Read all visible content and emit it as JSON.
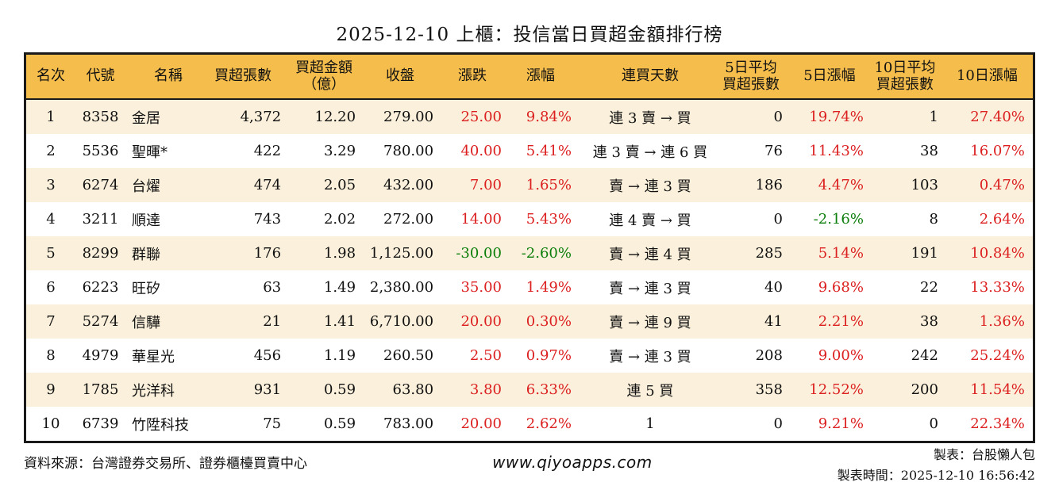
{
  "title": "2025-12-10 上櫃：投信當日買超金額排行榜",
  "colors": {
    "header_bg": "#f5bd4b",
    "row_alt_bg": "#faf0db",
    "positive_red": "#dc2020",
    "negative_green": "#0b7e0b",
    "border": "#1a1a1a"
  },
  "table": {
    "headers": [
      {
        "l1": "名次",
        "l2": ""
      },
      {
        "l1": "代號",
        "l2": ""
      },
      {
        "l1": "名稱",
        "l2": ""
      },
      {
        "l1": "買超張數",
        "l2": ""
      },
      {
        "l1": "買超金額",
        "l2": "（億）"
      },
      {
        "l1": "收盤",
        "l2": ""
      },
      {
        "l1": "漲跌",
        "l2": ""
      },
      {
        "l1": "漲幅",
        "l2": ""
      },
      {
        "l1": "連買天數",
        "l2": ""
      },
      {
        "l1": "5日平均",
        "l2": "買超張數"
      },
      {
        "l1": "5日漲幅",
        "l2": ""
      },
      {
        "l1": "10日平均",
        "l2": "買超張數"
      },
      {
        "l1": "10日漲幅",
        "l2": ""
      }
    ],
    "rows": [
      {
        "rank": "1",
        "code": "8358",
        "name": "金居",
        "volume": "4,372",
        "amount": "12.20",
        "close": "279.00",
        "change": "25.00",
        "change_pct": "9.84%",
        "streak": "連 3 賣 → 買",
        "avg5": "0",
        "pct5": "19.74%",
        "avg10": "1",
        "pct10": "27.40%"
      },
      {
        "rank": "2",
        "code": "5536",
        "name": "聖暉*",
        "volume": "422",
        "amount": "3.29",
        "close": "780.00",
        "change": "40.00",
        "change_pct": "5.41%",
        "streak": "連 3 賣 → 連 6 買",
        "avg5": "76",
        "pct5": "11.43%",
        "avg10": "38",
        "pct10": "16.07%"
      },
      {
        "rank": "3",
        "code": "6274",
        "name": "台燿",
        "volume": "474",
        "amount": "2.05",
        "close": "432.00",
        "change": "7.00",
        "change_pct": "1.65%",
        "streak": "賣 → 連 3 買",
        "avg5": "186",
        "pct5": "4.47%",
        "avg10": "103",
        "pct10": "0.47%"
      },
      {
        "rank": "4",
        "code": "3211",
        "name": "順達",
        "volume": "743",
        "amount": "2.02",
        "close": "272.00",
        "change": "14.00",
        "change_pct": "5.43%",
        "streak": "連 4 賣 → 買",
        "avg5": "0",
        "pct5": "-2.16%",
        "avg10": "8",
        "pct10": "2.64%"
      },
      {
        "rank": "5",
        "code": "8299",
        "name": "群聯",
        "volume": "176",
        "amount": "1.98",
        "close": "1,125.00",
        "change": "-30.00",
        "change_pct": "-2.60%",
        "streak": "賣 → 連 4 買",
        "avg5": "285",
        "pct5": "5.14%",
        "avg10": "191",
        "pct10": "10.84%"
      },
      {
        "rank": "6",
        "code": "6223",
        "name": "旺矽",
        "volume": "63",
        "amount": "1.49",
        "close": "2,380.00",
        "change": "35.00",
        "change_pct": "1.49%",
        "streak": "賣 → 連 3 買",
        "avg5": "40",
        "pct5": "9.68%",
        "avg10": "22",
        "pct10": "13.33%"
      },
      {
        "rank": "7",
        "code": "5274",
        "name": "信驊",
        "volume": "21",
        "amount": "1.41",
        "close": "6,710.00",
        "change": "20.00",
        "change_pct": "0.30%",
        "streak": "賣 → 連 9 買",
        "avg5": "41",
        "pct5": "2.21%",
        "avg10": "38",
        "pct10": "1.36%"
      },
      {
        "rank": "8",
        "code": "4979",
        "name": "華星光",
        "volume": "456",
        "amount": "1.19",
        "close": "260.50",
        "change": "2.50",
        "change_pct": "0.97%",
        "streak": "賣 → 連 3 買",
        "avg5": "208",
        "pct5": "9.00%",
        "avg10": "242",
        "pct10": "25.24%"
      },
      {
        "rank": "9",
        "code": "1785",
        "name": "光洋科",
        "volume": "931",
        "amount": "0.59",
        "close": "63.80",
        "change": "3.80",
        "change_pct": "6.33%",
        "streak": "連 5 買",
        "avg5": "358",
        "pct5": "12.52%",
        "avg10": "200",
        "pct10": "11.54%"
      },
      {
        "rank": "10",
        "code": "6739",
        "name": "竹陞科技",
        "volume": "75",
        "amount": "0.59",
        "close": "783.00",
        "change": "20.00",
        "change_pct": "2.62%",
        "streak": "1",
        "avg5": "0",
        "pct5": "9.21%",
        "avg10": "0",
        "pct10": "22.34%"
      }
    ]
  },
  "footer": {
    "source": "資料來源：台灣證券交易所、證券櫃檯買賣中心",
    "website": "www.qiyoapps.com",
    "author": "製表：台股懶人包",
    "generated": "製表時間：2025-12-10 16:56:42"
  }
}
